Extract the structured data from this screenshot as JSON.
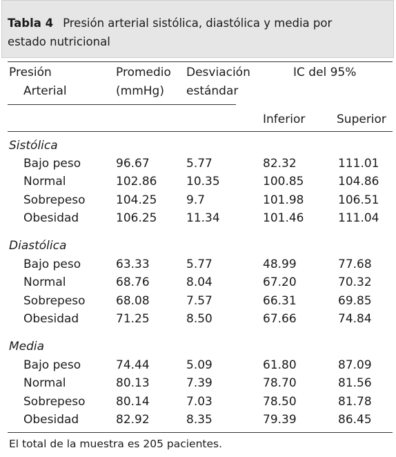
{
  "caption": {
    "label": "Tabla 4",
    "title_line1": "Presión arterial sistólica, diastólica y media por",
    "title_line2": "estado nutricional"
  },
  "headers": {
    "pressure_line1": "Presión",
    "pressure_line2": "Arterial",
    "mean_line1": "Promedio",
    "mean_line2": "(mmHg)",
    "sd_line1": "Desviación",
    "sd_line2": "estándar",
    "ci": "IC del 95%",
    "ci_lower": "Inferior",
    "ci_upper": "Superior"
  },
  "groups": [
    {
      "label": "Sistólica",
      "rows": [
        {
          "category": "Bajo peso",
          "mean": "96.67",
          "sd": "5.77",
          "lower": "82.32",
          "upper": "111.01"
        },
        {
          "category": "Normal",
          "mean": "102.86",
          "sd": "10.35",
          "lower": "100.85",
          "upper": "104.86"
        },
        {
          "category": "Sobrepeso",
          "mean": "104.25",
          "sd": "9.7",
          "lower": "101.98",
          "upper": "106.51"
        },
        {
          "category": "Obesidad",
          "mean": "106.25",
          "sd": "11.34",
          "lower": "101.46",
          "upper": "111.04"
        }
      ]
    },
    {
      "label": "Diastólica",
      "rows": [
        {
          "category": "Bajo peso",
          "mean": "63.33",
          "sd": "5.77",
          "lower": "48.99",
          "upper": "77.68"
        },
        {
          "category": "Normal",
          "mean": "68.76",
          "sd": "8.04",
          "lower": "67.20",
          "upper": "70.32"
        },
        {
          "category": "Sobrepeso",
          "mean": "68.08",
          "sd": "7.57",
          "lower": "66.31",
          "upper": "69.85"
        },
        {
          "category": "Obesidad",
          "mean": "71.25",
          "sd": "8.50",
          "lower": "67.66",
          "upper": "74.84"
        }
      ]
    },
    {
      "label": "Media",
      "rows": [
        {
          "category": "Bajo peso",
          "mean": "74.44",
          "sd": "5.09",
          "lower": "61.80",
          "upper": "87.09"
        },
        {
          "category": "Normal",
          "mean": "80.13",
          "sd": "7.39",
          "lower": "78.70",
          "upper": "81.56"
        },
        {
          "category": "Sobrepeso",
          "mean": "80.14",
          "sd": "7.03",
          "lower": "78.50",
          "upper": "81.78"
        },
        {
          "category": "Obesidad",
          "mean": "82.92",
          "sd": "8.35",
          "lower": "79.39",
          "upper": "86.45"
        }
      ]
    }
  ],
  "footnote": "El total de la muestra es 205 pacientes."
}
